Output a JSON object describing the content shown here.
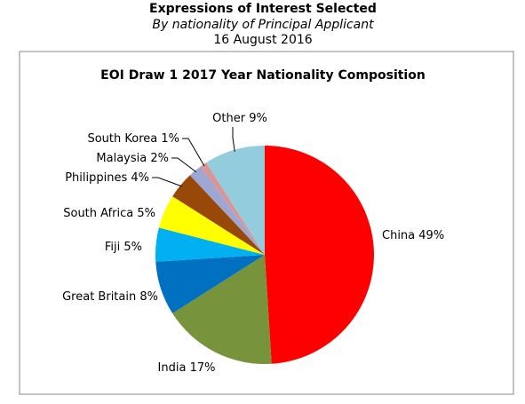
{
  "header": {
    "title": "Expressions of Interest Selected",
    "subtitle": "By nationality of Principal Applicant",
    "date": "16 August 2016"
  },
  "chart_data": {
    "type": "pie",
    "title": "EOI Draw 1 2017 Year Nationality Composition",
    "categories": [
      "China",
      "India",
      "Great Britain",
      "Fiji",
      "South Africa",
      "Philippines",
      "Malaysia",
      "South Korea",
      "Other"
    ],
    "values": [
      49,
      17,
      8,
      5,
      5,
      4,
      2,
      1,
      9
    ],
    "value_labels": [
      "49%",
      "17%",
      "8%",
      "5%",
      "5%",
      "4%",
      "2%",
      "1%",
      "9%"
    ],
    "colors": [
      "#ff0000",
      "#77933c",
      "#0070c0",
      "#00b0f0",
      "#ffff00",
      "#984807",
      "#9ea6d4",
      "#d99694",
      "#93cddd"
    ]
  }
}
